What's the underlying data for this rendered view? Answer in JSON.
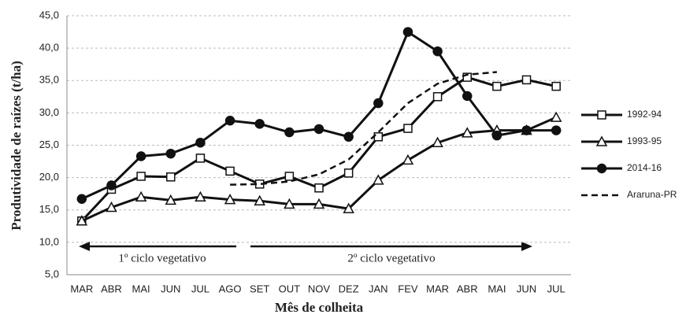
{
  "chart_data": {
    "type": "line",
    "x_label": "Mês de colheita",
    "y_label": "Produtividade de raízes (t/ha)",
    "categories": [
      "MAR",
      "ABR",
      "MAI",
      "JUN",
      "JUL",
      "AGO",
      "SET",
      "OUT",
      "NOV",
      "DEZ",
      "JAN",
      "FEV",
      "MAR",
      "ABR",
      "MAI",
      "JUN",
      "JUL"
    ],
    "ylim": [
      5,
      45
    ],
    "yticks": [
      {
        "value": 5,
        "label": "5,0"
      },
      {
        "value": 10,
        "label": "10,0"
      },
      {
        "value": 15,
        "label": "15,0"
      },
      {
        "value": 20,
        "label": "20,0"
      },
      {
        "value": 25,
        "label": "25,0"
      },
      {
        "value": 30,
        "label": "30,0"
      },
      {
        "value": 35,
        "label": "35,0"
      },
      {
        "value": 40,
        "label": "40,0"
      },
      {
        "value": 45,
        "label": "45,0"
      }
    ],
    "grid": true,
    "legend": "right",
    "annotations": [
      "1º  ciclo  vegetativo",
      "2º  ciclo  vegetativo"
    ],
    "series": [
      {
        "name": "1992-94",
        "color": "#111",
        "marker": "square",
        "fill": "#fff",
        "dashed": false,
        "values": [
          13.3,
          18.2,
          20.2,
          20.1,
          23.0,
          21.0,
          19.0,
          20.2,
          18.4,
          20.7,
          26.3,
          27.6,
          32.5,
          35.5,
          34.1,
          35.1,
          34.1
        ]
      },
      {
        "name": "1993-95",
        "color": "#111",
        "marker": "triangle",
        "fill": "#fff",
        "dashed": false,
        "values": [
          13.3,
          15.4,
          17.0,
          16.5,
          17.0,
          16.6,
          16.4,
          15.9,
          15.9,
          15.2,
          19.6,
          22.7,
          25.4,
          26.9,
          27.3,
          27.3,
          29.3
        ]
      },
      {
        "name": "2014-16",
        "color": "#111",
        "marker": "circle",
        "fill": "#111",
        "dashed": false,
        "values": [
          16.7,
          18.8,
          23.3,
          23.7,
          25.4,
          28.8,
          28.3,
          27.0,
          27.5,
          26.3,
          31.5,
          42.5,
          39.5,
          32.6,
          26.5,
          27.3,
          27.3
        ]
      },
      {
        "name": "Araruna-PR",
        "color": "#111",
        "marker": null,
        "fill": null,
        "dashed": true,
        "values": [
          null,
          null,
          null,
          null,
          null,
          18.9,
          19.0,
          19.4,
          20.5,
          22.8,
          27.0,
          31.5,
          34.5,
          35.9,
          36.3,
          null,
          null
        ]
      }
    ]
  }
}
